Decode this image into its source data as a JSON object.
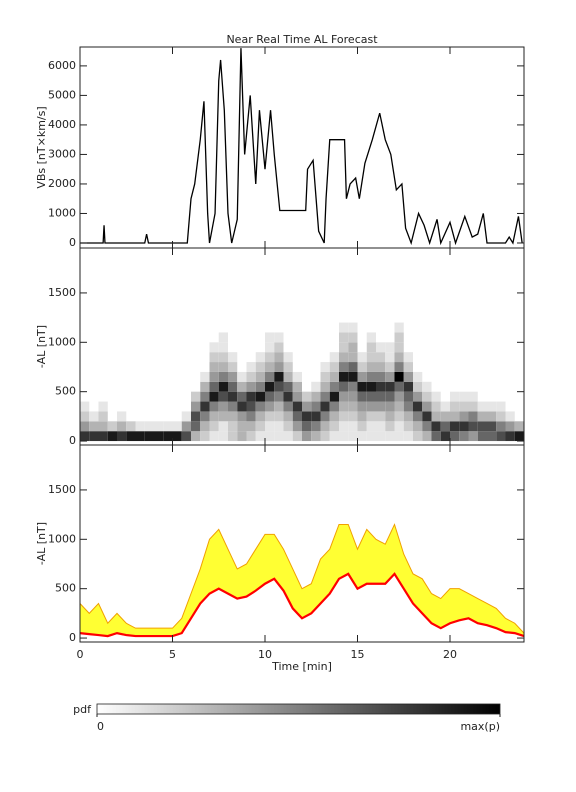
{
  "chart_data": [
    {
      "type": "line",
      "title": "Near Real Time AL Forecast",
      "ylabel": "VBs [nT×km/s]",
      "xlim": [
        0,
        24
      ],
      "xticks": [
        0,
        5,
        10,
        15,
        20
      ],
      "ylim": [
        -170,
        6640
      ],
      "yticks": [
        0,
        1000,
        2000,
        3000,
        4000,
        5000,
        6000
      ],
      "series": [
        {
          "color": "#000000",
          "x": [
            0,
            1.25,
            1.3,
            1.35,
            3.5,
            3.6,
            3.7,
            5.8,
            6,
            6.2,
            6.5,
            6.7,
            6.9,
            7,
            7.3,
            7.5,
            7.6,
            7.8,
            8,
            8.2,
            8.5,
            8.7,
            8.9,
            9.2,
            9.5,
            9.7,
            10,
            10.3,
            10.5,
            10.8,
            12.2,
            12.3,
            12.6,
            12.9,
            13.2,
            13.3,
            13.5,
            14.3,
            14.4,
            14.6,
            14.9,
            15.1,
            15.4,
            15.8,
            16.2,
            16.5,
            16.8,
            17.1,
            17.4,
            17.6,
            17.9,
            18.3,
            18.6,
            18.9,
            19.3,
            19.5,
            20,
            20.3,
            20.8,
            21.2,
            21.5,
            21.8,
            22,
            23,
            23.2,
            23.4,
            23.7,
            23.9
          ],
          "values": [
            0,
            0,
            600,
            0,
            0,
            300,
            0,
            0,
            1500,
            2000,
            3500,
            4800,
            1000,
            0,
            1000,
            5500,
            6200,
            4500,
            1000,
            0,
            800,
            6600,
            3000,
            5000,
            2000,
            4500,
            2500,
            4500,
            3000,
            1100,
            1100,
            2500,
            2800,
            400,
            0,
            1500,
            3500,
            3500,
            1500,
            2000,
            2200,
            1500,
            2700,
            3500,
            4400,
            3500,
            3000,
            1800,
            2000,
            500,
            0,
            1000,
            600,
            0,
            800,
            0,
            700,
            0,
            900,
            200,
            300,
            1000,
            0,
            0,
            200,
            0,
            900,
            0
          ]
        }
      ]
    },
    {
      "type": "heatmap",
      "ylabel": "-AL [nT]",
      "xlim": [
        0,
        24
      ],
      "xticks": [
        0,
        5,
        10,
        15,
        20
      ],
      "ylim": [
        -40,
        1955
      ],
      "yticks": [
        0,
        500,
        1000,
        1500
      ],
      "xbins": [
        0,
        0.5,
        1,
        1.5,
        2,
        2.5,
        3,
        3.5,
        4,
        4.5,
        5,
        5.5,
        6,
        6.5,
        7,
        7.5,
        8,
        8.5,
        9,
        9.5,
        10,
        10.5,
        11,
        11.5,
        12,
        12.5,
        13,
        13.5,
        14,
        14.5,
        15,
        15.5,
        16,
        16.5,
        17,
        17.5,
        18,
        18.5,
        19,
        19.5,
        20,
        20.5,
        21,
        21.5,
        22,
        22.5,
        23,
        23.5,
        24
      ],
      "ybins": [
        0,
        100,
        200,
        300,
        400,
        500,
        600,
        700,
        800,
        900,
        1000,
        1100,
        1200
      ],
      "zlim": [
        0,
        1
      ],
      "zticks": [
        0,
        {
          "value": 1,
          "label": "max(p)"
        }
      ],
      "zlabel": "pdf",
      "z": [
        [
          0.8,
          0.4,
          0.2,
          0.1,
          0,
          0,
          0,
          0,
          0,
          0,
          0,
          0
        ],
        [
          0.8,
          0.3,
          0.1,
          0,
          0,
          0,
          0,
          0,
          0,
          0,
          0,
          0
        ],
        [
          0.8,
          0.3,
          0.2,
          0.1,
          0,
          0,
          0,
          0,
          0,
          0,
          0,
          0
        ],
        [
          0.9,
          0.2,
          0,
          0,
          0,
          0,
          0,
          0,
          0,
          0,
          0,
          0
        ],
        [
          0.8,
          0.3,
          0.1,
          0,
          0,
          0,
          0,
          0,
          0,
          0,
          0,
          0
        ],
        [
          0.9,
          0.2,
          0,
          0,
          0,
          0,
          0,
          0,
          0,
          0,
          0,
          0
        ],
        [
          0.9,
          0.1,
          0,
          0,
          0,
          0,
          0,
          0,
          0,
          0,
          0,
          0
        ],
        [
          0.9,
          0.1,
          0,
          0,
          0,
          0,
          0,
          0,
          0,
          0,
          0,
          0
        ],
        [
          0.9,
          0.1,
          0,
          0,
          0,
          0,
          0,
          0,
          0,
          0,
          0,
          0
        ],
        [
          0.9,
          0.1,
          0,
          0,
          0,
          0,
          0,
          0,
          0,
          0,
          0,
          0
        ],
        [
          0.9,
          0.1,
          0,
          0,
          0,
          0,
          0,
          0,
          0,
          0,
          0,
          0
        ],
        [
          0.7,
          0.4,
          0.1,
          0,
          0,
          0,
          0,
          0,
          0,
          0,
          0,
          0
        ],
        [
          0.3,
          0.6,
          0.7,
          0.4,
          0.2,
          0,
          0,
          0,
          0,
          0,
          0,
          0
        ],
        [
          0.2,
          0.3,
          0.5,
          0.8,
          0.5,
          0.3,
          0.1,
          0,
          0,
          0,
          0,
          0
        ],
        [
          0.1,
          0.2,
          0.3,
          0.5,
          0.9,
          0.6,
          0.4,
          0.3,
          0.2,
          0.1,
          0,
          0
        ],
        [
          0.1,
          0.1,
          0.3,
          0.4,
          0.7,
          0.9,
          0.5,
          0.3,
          0.2,
          0.1,
          0.1,
          0
        ],
        [
          0.2,
          0.2,
          0.3,
          0.5,
          0.8,
          0.6,
          0.4,
          0.2,
          0.1,
          0,
          0,
          0
        ],
        [
          0.3,
          0.3,
          0.4,
          0.8,
          0.6,
          0.3,
          0.1,
          0,
          0,
          0,
          0,
          0
        ],
        [
          0.2,
          0.3,
          0.5,
          0.7,
          0.8,
          0.4,
          0.2,
          0.1,
          0,
          0,
          0,
          0
        ],
        [
          0.1,
          0.2,
          0.3,
          0.5,
          0.9,
          0.5,
          0.3,
          0.2,
          0.1,
          0,
          0,
          0
        ],
        [
          0.1,
          0.1,
          0.2,
          0.4,
          0.6,
          0.9,
          0.5,
          0.3,
          0.2,
          0.1,
          0.1,
          0
        ],
        [
          0.1,
          0.1,
          0.2,
          0.3,
          0.5,
          0.7,
          0.9,
          0.4,
          0.3,
          0.2,
          0.1,
          0
        ],
        [
          0.1,
          0.2,
          0.3,
          0.5,
          0.8,
          0.6,
          0.3,
          0.2,
          0.1,
          0,
          0,
          0
        ],
        [
          0.2,
          0.4,
          0.6,
          0.8,
          0.4,
          0.3,
          0.1,
          0,
          0,
          0,
          0,
          0
        ],
        [
          0.4,
          0.6,
          0.8,
          0.4,
          0.2,
          0,
          0,
          0,
          0,
          0,
          0,
          0
        ],
        [
          0.3,
          0.5,
          0.8,
          0.5,
          0.3,
          0.1,
          0,
          0,
          0,
          0,
          0,
          0
        ],
        [
          0.2,
          0.3,
          0.5,
          0.8,
          0.5,
          0.3,
          0.2,
          0.1,
          0,
          0,
          0,
          0
        ],
        [
          0.1,
          0.2,
          0.3,
          0.5,
          0.9,
          0.5,
          0.3,
          0.2,
          0.1,
          0,
          0,
          0
        ],
        [
          0.1,
          0.1,
          0.2,
          0.3,
          0.4,
          0.6,
          0.9,
          0.5,
          0.3,
          0.2,
          0.2,
          0.1
        ],
        [
          0.1,
          0.1,
          0.2,
          0.3,
          0.4,
          0.5,
          0.9,
          0.6,
          0.3,
          0.3,
          0.2,
          0.1
        ],
        [
          0.1,
          0.2,
          0.3,
          0.4,
          0.6,
          0.9,
          0.4,
          0.2,
          0.1,
          0,
          0,
          0
        ],
        [
          0.1,
          0.1,
          0.2,
          0.4,
          0.6,
          0.9,
          0.5,
          0.3,
          0.2,
          0.2,
          0.1,
          0
        ],
        [
          0.1,
          0.1,
          0.2,
          0.4,
          0.6,
          0.8,
          0.5,
          0.3,
          0.2,
          0.1,
          0,
          0
        ],
        [
          0.1,
          0.2,
          0.3,
          0.4,
          0.6,
          0.8,
          0.4,
          0.2,
          0.1,
          0.1,
          0,
          0
        ],
        [
          0.1,
          0.1,
          0.2,
          0.3,
          0.4,
          0.6,
          1,
          0.5,
          0.3,
          0.2,
          0.2,
          0.1
        ],
        [
          0.1,
          0.2,
          0.3,
          0.5,
          0.6,
          0.8,
          0.4,
          0.2,
          0.1,
          0,
          0,
          0
        ],
        [
          0.2,
          0.3,
          0.5,
          0.8,
          0.4,
          0.2,
          0.1,
          0,
          0,
          0,
          0,
          0
        ],
        [
          0.3,
          0.5,
          0.8,
          0.4,
          0.2,
          0.1,
          0,
          0,
          0,
          0,
          0,
          0
        ],
        [
          0.6,
          0.8,
          0.3,
          0.2,
          0.1,
          0,
          0,
          0,
          0,
          0,
          0,
          0
        ],
        [
          0.8,
          0.6,
          0.3,
          0.1,
          0,
          0,
          0,
          0,
          0,
          0,
          0,
          0
        ],
        [
          0.6,
          0.8,
          0.3,
          0.2,
          0.1,
          0,
          0,
          0,
          0,
          0,
          0,
          0
        ],
        [
          0.5,
          0.8,
          0.4,
          0.2,
          0.1,
          0,
          0,
          0,
          0,
          0,
          0,
          0
        ],
        [
          0.4,
          0.7,
          0.5,
          0.2,
          0.1,
          0,
          0,
          0,
          0,
          0,
          0,
          0
        ],
        [
          0.6,
          0.7,
          0.3,
          0.1,
          0,
          0,
          0,
          0,
          0,
          0,
          0,
          0
        ],
        [
          0.6,
          0.7,
          0.3,
          0.1,
          0,
          0,
          0,
          0,
          0,
          0,
          0,
          0
        ],
        [
          0.7,
          0.5,
          0.2,
          0.1,
          0,
          0,
          0,
          0,
          0,
          0,
          0,
          0
        ],
        [
          0.8,
          0.4,
          0.1,
          0,
          0,
          0,
          0,
          0,
          0,
          0,
          0,
          0
        ],
        [
          0.9,
          0.3,
          0,
          0,
          0,
          0,
          0,
          0,
          0,
          0,
          0,
          0
        ]
      ]
    },
    {
      "type": "band",
      "ylabel": "-AL [nT]",
      "xlabel": "Time [min]",
      "xlim": [
        0,
        24
      ],
      "xticks": [
        0,
        5,
        10,
        15,
        20
      ],
      "ylim": [
        -40,
        1955
      ],
      "yticks": [
        0,
        500,
        1000,
        1500
      ],
      "fill": "#ffff33",
      "x": [
        0,
        0.5,
        1,
        1.5,
        2,
        2.5,
        3,
        3.5,
        4,
        4.5,
        5,
        5.5,
        6,
        6.5,
        7,
        7.5,
        8,
        8.5,
        9,
        9.5,
        10,
        10.5,
        11,
        11.5,
        12,
        12.5,
        13,
        13.5,
        14,
        14.5,
        15,
        15.5,
        16,
        16.5,
        17,
        17.5,
        18,
        18.5,
        19,
        19.5,
        20,
        20.5,
        21,
        21.5,
        22,
        22.5,
        23,
        23.5,
        24
      ],
      "series": [
        {
          "color": "#f0a000",
          "values": [
            350,
            250,
            350,
            150,
            250,
            150,
            100,
            100,
            100,
            100,
            100,
            200,
            450,
            700,
            1000,
            1100,
            900,
            700,
            750,
            900,
            1050,
            1050,
            900,
            700,
            500,
            550,
            800,
            900,
            1150,
            1150,
            900,
            1100,
            1000,
            950,
            1150,
            850,
            650,
            600,
            450,
            400,
            500,
            500,
            450,
            400,
            350,
            300,
            200,
            150,
            50
          ]
        },
        {
          "color": "#ff0000",
          "values": [
            50,
            40,
            30,
            20,
            50,
            30,
            20,
            20,
            20,
            20,
            20,
            50,
            200,
            350,
            450,
            500,
            450,
            400,
            420,
            480,
            550,
            600,
            480,
            300,
            200,
            250,
            350,
            450,
            600,
            650,
            500,
            550,
            550,
            550,
            650,
            500,
            350,
            250,
            150,
            100,
            150,
            180,
            200,
            150,
            130,
            100,
            60,
            50,
            20
          ]
        }
      ]
    }
  ]
}
